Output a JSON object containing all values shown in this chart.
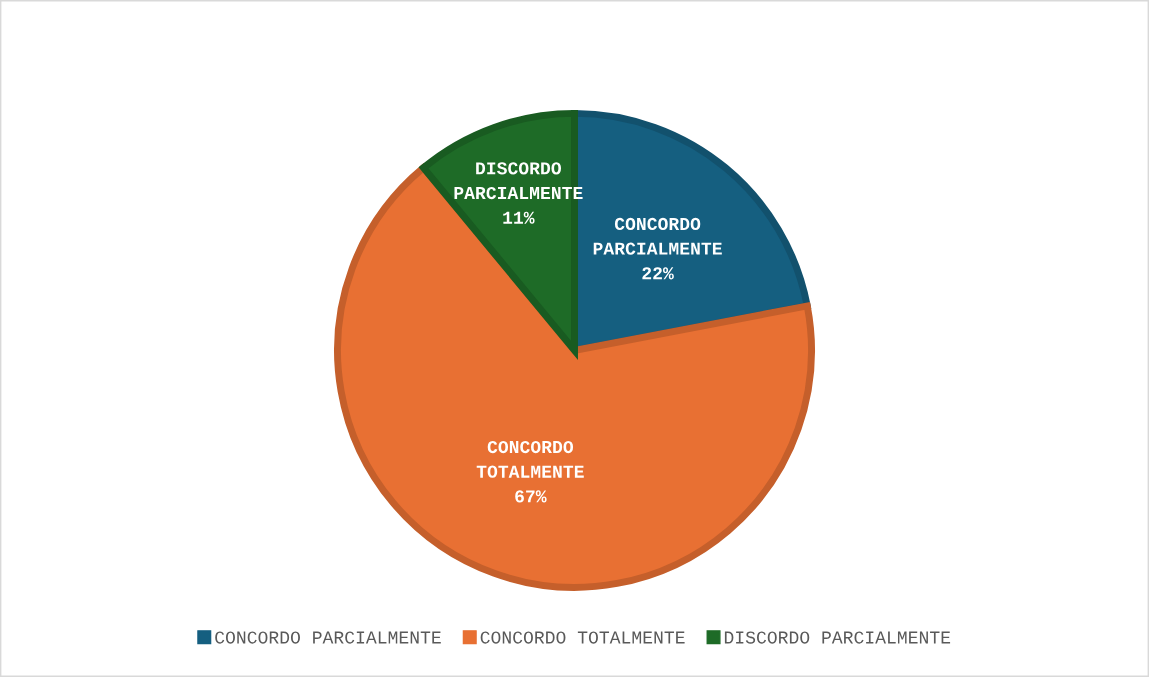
{
  "chart_data": {
    "type": "pie",
    "categories": [
      "CONCORDO PARCIALMENTE",
      "CONCORDO TOTALMENTE",
      "DISCORDO PARCIALMENTE"
    ],
    "values": [
      22,
      67,
      11
    ],
    "value_labels": [
      "22%",
      "67%",
      "11%"
    ],
    "colors": [
      "#155f80",
      "#e87033",
      "#1e6b27"
    ],
    "legend": "bottom"
  }
}
